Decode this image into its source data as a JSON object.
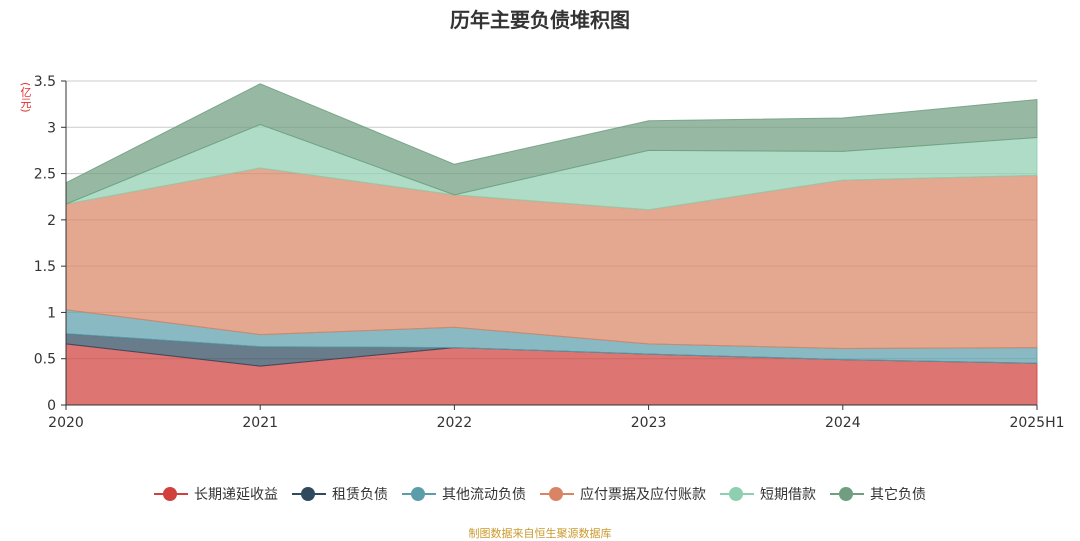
{
  "chart_data": {
    "type": "area",
    "stacked": true,
    "title": "历年主要负债堆积图",
    "unit_label": "(亿元)",
    "categories": [
      "2020",
      "2021",
      "2022",
      "2023",
      "2024",
      "2025H1"
    ],
    "ylim": [
      0,
      3.5
    ],
    "yticks": [
      "0",
      "0.5",
      "1",
      "1.5",
      "2",
      "2.5",
      "3",
      "3.5"
    ],
    "grid": true,
    "legend_position": "bottom",
    "series": [
      {
        "name": "长期递延收益",
        "color": "#d0403c",
        "values": [
          0.66,
          0.42,
          0.62,
          0.55,
          0.49,
          0.45
        ]
      },
      {
        "name": "租赁负债",
        "color": "#2f4a5e",
        "values": [
          0.11,
          0.21,
          0.0,
          0.0,
          0.0,
          0.0
        ]
      },
      {
        "name": "其他流动负债",
        "color": "#5b9eaa",
        "values": [
          0.26,
          0.13,
          0.22,
          0.11,
          0.12,
          0.17
        ]
      },
      {
        "name": "应付票据及应付账款",
        "color": "#d98565",
        "values": [
          1.14,
          1.8,
          1.43,
          1.45,
          1.82,
          1.86
        ]
      },
      {
        "name": "短期借款",
        "color": "#8fcfb0",
        "values": [
          0.0,
          0.47,
          0.0,
          0.64,
          0.31,
          0.41
        ]
      },
      {
        "name": "其它负债",
        "color": "#6f9e80",
        "values": [
          0.23,
          0.44,
          0.33,
          0.32,
          0.36,
          0.41
        ]
      }
    ]
  },
  "source_text": "制图数据来自恒生聚源数据库"
}
